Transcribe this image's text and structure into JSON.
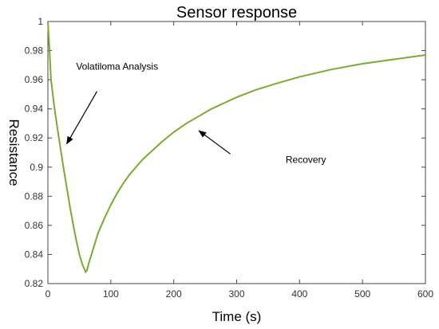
{
  "chart_data": {
    "type": "line",
    "title": "Sensor response",
    "xlabel": "Time (s)",
    "ylabel": "Resistance",
    "xlim": [
      0,
      600
    ],
    "ylim": [
      0.82,
      1.0
    ],
    "xticks": [
      "0",
      "100",
      "200",
      "300",
      "400",
      "500",
      "600"
    ],
    "yticks": [
      "0.82",
      "0.84",
      "0.86",
      "0.88",
      "0.9",
      "0.92",
      "0.94",
      "0.96",
      "0.98",
      "1"
    ],
    "grid": false,
    "line_color": "#77ac30",
    "series": [
      {
        "x": [
          0,
          2,
          5,
          10,
          15,
          20,
          25,
          30,
          35,
          40,
          45,
          50,
          55,
          60,
          62,
          65,
          70,
          75,
          80,
          90,
          100,
          110,
          120,
          130,
          140,
          150,
          160,
          180,
          200,
          220,
          240,
          260,
          280,
          300,
          330,
          360,
          400,
          450,
          500,
          550,
          600
        ],
        "y": [
          1.0,
          0.985,
          0.96,
          0.942,
          0.927,
          0.913,
          0.899,
          0.886,
          0.873,
          0.861,
          0.85,
          0.84,
          0.833,
          0.828,
          0.829,
          0.834,
          0.841,
          0.848,
          0.855,
          0.865,
          0.874,
          0.882,
          0.889,
          0.895,
          0.9,
          0.905,
          0.909,
          0.917,
          0.924,
          0.93,
          0.935,
          0.94,
          0.944,
          0.948,
          0.953,
          0.957,
          0.962,
          0.967,
          0.971,
          0.974,
          0.977
        ]
      }
    ],
    "annotations": [
      {
        "text": "Volatiloma Analysis",
        "x": 110,
        "y": 0.967,
        "arrow_from": [
          78,
          0.952
        ],
        "arrow_to": [
          30,
          0.916
        ]
      },
      {
        "text": "Recovery",
        "x": 410,
        "y": 0.903,
        "arrow_from": [
          290,
          0.909
        ],
        "arrow_to": [
          240,
          0.925
        ]
      }
    ]
  }
}
